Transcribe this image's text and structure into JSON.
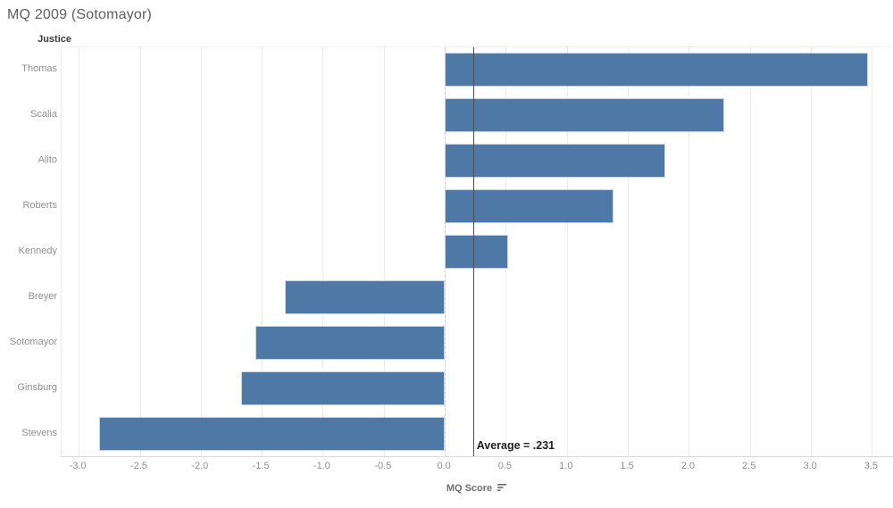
{
  "title": "MQ 2009 (Sotomayor)",
  "row_header": "Justice",
  "x_axis": {
    "label": "MQ Score",
    "sort_icon": "sort-descending-icon"
  },
  "reference_line": {
    "value": 0.231,
    "label": "Average = .231"
  },
  "colors": {
    "bar": "#4e79a7",
    "bar_border": "#c9d5e5",
    "gridline": "#ececec",
    "reference_line": "#4f4f4f",
    "title_text": "#5e5e5e",
    "tick_text": "#8e8e8e"
  },
  "chart_data": {
    "type": "bar",
    "orientation": "horizontal",
    "title": "MQ 2009 (Sotomayor)",
    "xlabel": "MQ Score",
    "ylabel": "Justice",
    "categories": [
      "Thomas",
      "Scalia",
      "Alito",
      "Roberts",
      "Kennedy",
      "Breyer",
      "Sotomayor",
      "Ginsburg",
      "Stevens"
    ],
    "values": [
      3.47,
      2.29,
      1.81,
      1.38,
      0.52,
      -1.31,
      -1.55,
      -1.67,
      -2.83
    ],
    "xlim": [
      -3.14,
      3.68
    ],
    "xticks": [
      -3.0,
      -2.5,
      -2.0,
      -1.5,
      -1.0,
      -0.5,
      0.0,
      0.5,
      1.0,
      1.5,
      2.0,
      2.5,
      3.0,
      3.5
    ],
    "grid": true,
    "zero_line": true,
    "legend": false,
    "reference_line": {
      "value": 0.231,
      "label": "Average = .231"
    }
  }
}
